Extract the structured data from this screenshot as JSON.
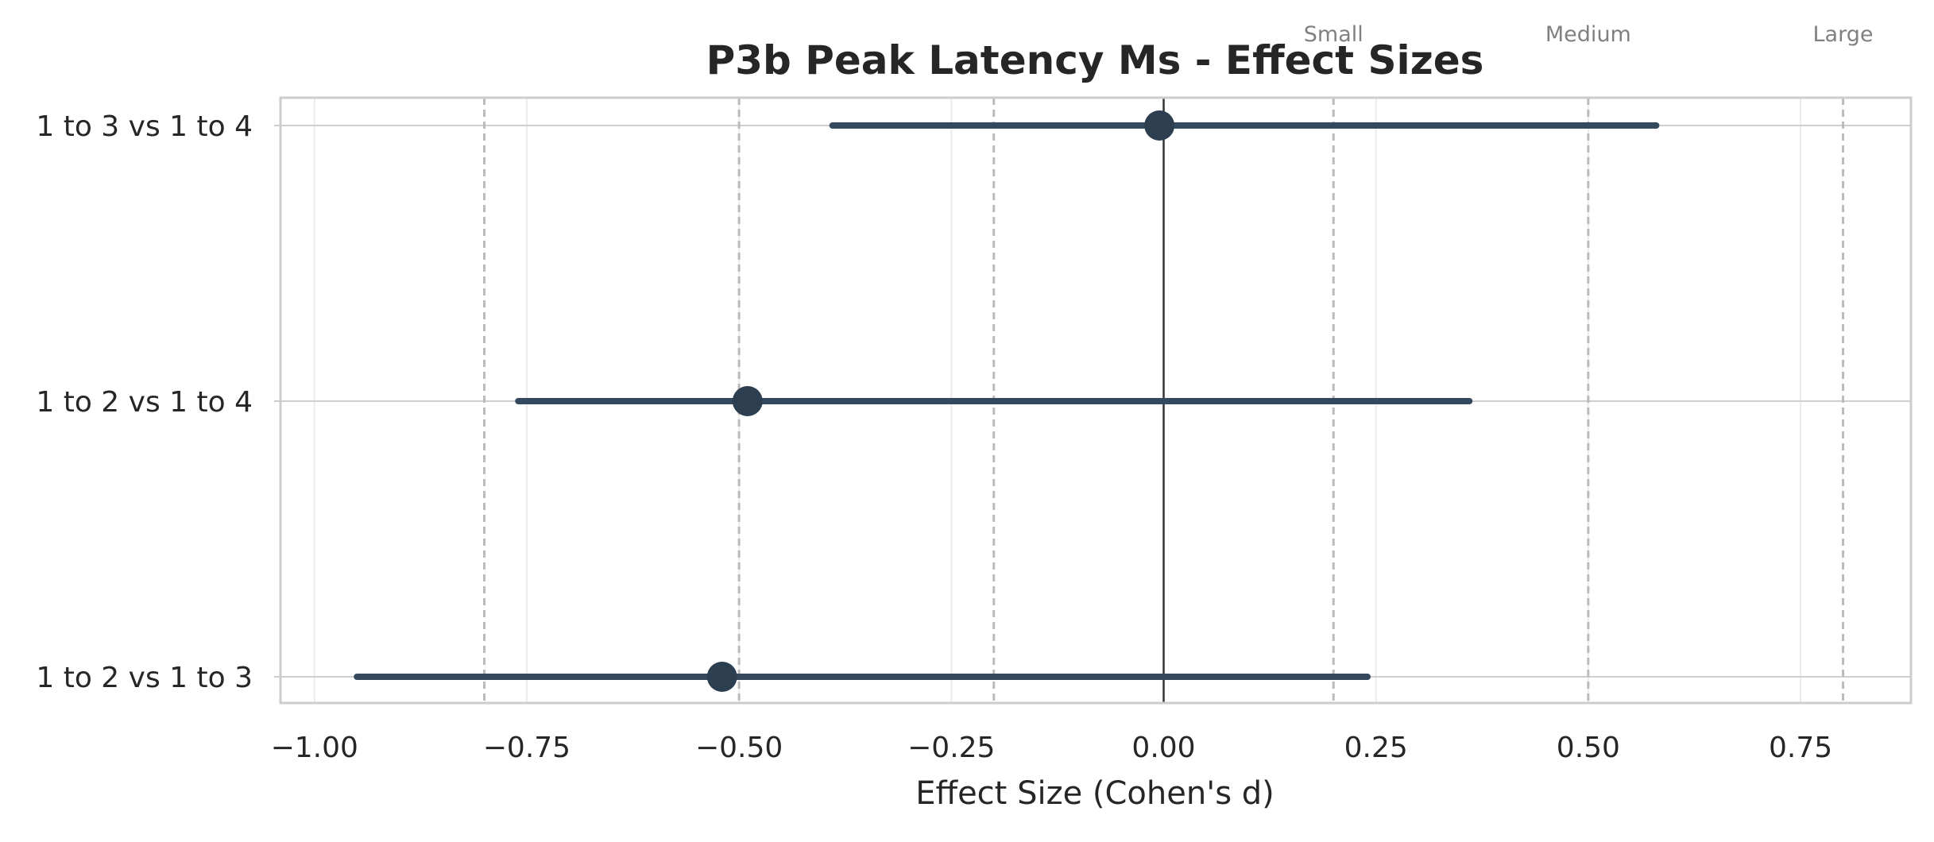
{
  "chart_data": {
    "type": "forest",
    "title": "P3b Peak Latency Ms - Effect Sizes",
    "xlabel": "Effect Size (Cohen's d)",
    "ylabel": "",
    "xlim": [
      -1.04,
      0.88
    ],
    "xticks": [
      -1.0,
      -0.75,
      -0.5,
      -0.25,
      0.0,
      0.25,
      0.5,
      0.75
    ],
    "xtick_labels": [
      "−1.00",
      "−0.75",
      "−0.50",
      "−0.25",
      "0.00",
      "0.25",
      "0.50",
      "0.75"
    ],
    "grid": true,
    "categories": [
      "1 to 3 vs 1 to 4",
      "1 to 2 vs 1 to 4",
      "1 to 2 vs 1 to 3"
    ],
    "estimates": [
      -0.005,
      -0.49,
      -0.52
    ],
    "ci_lower": [
      -0.39,
      -0.76,
      -0.95
    ],
    "ci_upper": [
      0.58,
      0.36,
      0.24
    ],
    "reference_lines": [
      {
        "value": 0.0,
        "style": "solid",
        "label": ""
      },
      {
        "value": 0.2,
        "style": "dashed",
        "label": "Small"
      },
      {
        "value": 0.5,
        "style": "dashed",
        "label": "Medium"
      },
      {
        "value": 0.8,
        "style": "dashed",
        "label": "Large"
      },
      {
        "value": -0.2,
        "style": "dashed",
        "label": ""
      },
      {
        "value": -0.5,
        "style": "dashed",
        "label": ""
      },
      {
        "value": -0.8,
        "style": "dashed",
        "label": ""
      }
    ],
    "colors": {
      "marker": "#2c3e50",
      "ci_line": "#34495e",
      "zero_line": "#333333",
      "ref_line": "#bbbbbb",
      "grid": "#ebebeb",
      "frame": "#cccccc"
    }
  }
}
